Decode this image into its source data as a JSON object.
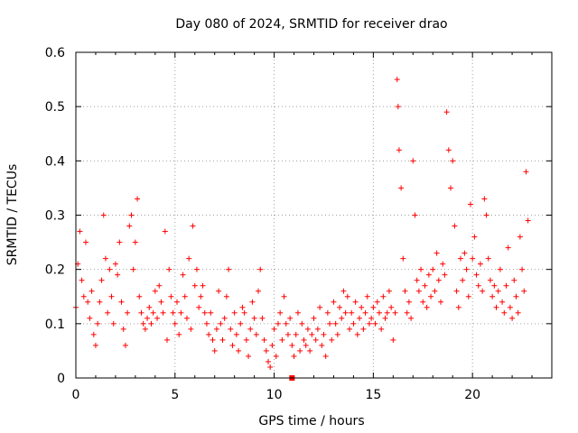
{
  "chart_data": {
    "type": "scatter",
    "title": "Day 080 of 2024, SRMTID for receiver drao",
    "xlabel": "GPS time / hours",
    "ylabel": "SRMTID / TECUs",
    "xlim": [
      0,
      24
    ],
    "ylim": [
      0,
      0.6
    ],
    "xticks": [
      0,
      5,
      10,
      15,
      20
    ],
    "yticks": [
      0,
      0.1,
      0.2,
      0.3,
      0.4,
      0.5,
      0.6
    ],
    "ytick_labels": [
      "0",
      "0.1",
      "0.2",
      "0.3",
      "0.4",
      "0.5",
      "0.6"
    ],
    "grid": true,
    "marker": "+",
    "color": "#ff0000",
    "marker_hours": 10.9,
    "series": [
      {
        "name": "SRMTID",
        "points": [
          [
            0.0,
            0.13
          ],
          [
            0.1,
            0.21
          ],
          [
            0.2,
            0.27
          ],
          [
            0.3,
            0.18
          ],
          [
            0.4,
            0.15
          ],
          [
            0.5,
            0.25
          ],
          [
            0.6,
            0.14
          ],
          [
            0.7,
            0.11
          ],
          [
            0.8,
            0.16
          ],
          [
            0.9,
            0.08
          ],
          [
            1.0,
            0.06
          ],
          [
            1.1,
            0.1
          ],
          [
            1.2,
            0.14
          ],
          [
            1.3,
            0.18
          ],
          [
            1.4,
            0.3
          ],
          [
            1.5,
            0.22
          ],
          [
            1.6,
            0.12
          ],
          [
            1.7,
            0.2
          ],
          [
            1.8,
            0.15
          ],
          [
            1.9,
            0.1
          ],
          [
            2.0,
            0.21
          ],
          [
            2.1,
            0.19
          ],
          [
            2.2,
            0.25
          ],
          [
            2.3,
            0.14
          ],
          [
            2.4,
            0.09
          ],
          [
            2.5,
            0.06
          ],
          [
            2.6,
            0.12
          ],
          [
            2.7,
            0.28
          ],
          [
            2.8,
            0.3
          ],
          [
            2.9,
            0.2
          ],
          [
            3.0,
            0.25
          ],
          [
            3.1,
            0.33
          ],
          [
            3.2,
            0.15
          ],
          [
            3.3,
            0.12
          ],
          [
            3.4,
            0.1
          ],
          [
            3.5,
            0.09
          ],
          [
            3.6,
            0.11
          ],
          [
            3.7,
            0.13
          ],
          [
            3.8,
            0.1
          ],
          [
            3.9,
            0.12
          ],
          [
            4.0,
            0.16
          ],
          [
            4.1,
            0.11
          ],
          [
            4.2,
            0.17
          ],
          [
            4.3,
            0.14
          ],
          [
            4.4,
            0.12
          ],
          [
            4.5,
            0.27
          ],
          [
            4.6,
            0.07
          ],
          [
            4.7,
            0.2
          ],
          [
            4.8,
            0.15
          ],
          [
            4.9,
            0.12
          ],
          [
            5.0,
            0.1
          ],
          [
            5.1,
            0.14
          ],
          [
            5.2,
            0.08
          ],
          [
            5.3,
            0.12
          ],
          [
            5.4,
            0.19
          ],
          [
            5.5,
            0.15
          ],
          [
            5.6,
            0.11
          ],
          [
            5.7,
            0.22
          ],
          [
            5.8,
            0.09
          ],
          [
            5.9,
            0.28
          ],
          [
            6.0,
            0.17
          ],
          [
            6.1,
            0.2
          ],
          [
            6.2,
            0.13
          ],
          [
            6.3,
            0.15
          ],
          [
            6.4,
            0.17
          ],
          [
            6.5,
            0.12
          ],
          [
            6.6,
            0.1
          ],
          [
            6.7,
            0.08
          ],
          [
            6.8,
            0.12
          ],
          [
            6.9,
            0.07
          ],
          [
            7.0,
            0.05
          ],
          [
            7.1,
            0.09
          ],
          [
            7.2,
            0.16
          ],
          [
            7.3,
            0.1
          ],
          [
            7.4,
            0.07
          ],
          [
            7.5,
            0.11
          ],
          [
            7.6,
            0.15
          ],
          [
            7.7,
            0.2
          ],
          [
            7.8,
            0.09
          ],
          [
            7.9,
            0.06
          ],
          [
            8.0,
            0.12
          ],
          [
            8.1,
            0.08
          ],
          [
            8.2,
            0.05
          ],
          [
            8.3,
            0.1
          ],
          [
            8.4,
            0.13
          ],
          [
            8.5,
            0.12
          ],
          [
            8.6,
            0.07
          ],
          [
            8.7,
            0.04
          ],
          [
            8.8,
            0.09
          ],
          [
            8.9,
            0.14
          ],
          [
            9.0,
            0.11
          ],
          [
            9.1,
            0.08
          ],
          [
            9.2,
            0.16
          ],
          [
            9.3,
            0.2
          ],
          [
            9.4,
            0.11
          ],
          [
            9.5,
            0.07
          ],
          [
            9.6,
            0.05
          ],
          [
            9.7,
            0.03
          ],
          [
            9.8,
            0.02
          ],
          [
            9.9,
            0.06
          ],
          [
            10.0,
            0.09
          ],
          [
            10.1,
            0.04
          ],
          [
            10.2,
            0.1
          ],
          [
            10.3,
            0.12
          ],
          [
            10.4,
            0.07
          ],
          [
            10.5,
            0.15
          ],
          [
            10.6,
            0.1
          ],
          [
            10.7,
            0.08
          ],
          [
            10.8,
            0.11
          ],
          [
            10.9,
            0.06
          ],
          [
            11.0,
            0.04
          ],
          [
            11.1,
            0.08
          ],
          [
            11.2,
            0.12
          ],
          [
            11.3,
            0.05
          ],
          [
            11.4,
            0.1
          ],
          [
            11.5,
            0.07
          ],
          [
            11.6,
            0.06
          ],
          [
            11.7,
            0.09
          ],
          [
            11.8,
            0.05
          ],
          [
            11.9,
            0.08
          ],
          [
            12.0,
            0.11
          ],
          [
            12.1,
            0.07
          ],
          [
            12.2,
            0.09
          ],
          [
            12.3,
            0.13
          ],
          [
            12.4,
            0.06
          ],
          [
            12.5,
            0.08
          ],
          [
            12.6,
            0.04
          ],
          [
            12.7,
            0.12
          ],
          [
            12.8,
            0.1
          ],
          [
            12.9,
            0.07
          ],
          [
            13.0,
            0.14
          ],
          [
            13.1,
            0.1
          ],
          [
            13.2,
            0.08
          ],
          [
            13.3,
            0.13
          ],
          [
            13.4,
            0.11
          ],
          [
            13.5,
            0.16
          ],
          [
            13.6,
            0.12
          ],
          [
            13.7,
            0.15
          ],
          [
            13.8,
            0.09
          ],
          [
            13.9,
            0.12
          ],
          [
            14.0,
            0.1
          ],
          [
            14.1,
            0.14
          ],
          [
            14.2,
            0.08
          ],
          [
            14.3,
            0.11
          ],
          [
            14.4,
            0.13
          ],
          [
            14.5,
            0.09
          ],
          [
            14.6,
            0.12
          ],
          [
            14.7,
            0.15
          ],
          [
            14.8,
            0.1
          ],
          [
            14.9,
            0.11
          ],
          [
            15.0,
            0.13
          ],
          [
            15.1,
            0.1
          ],
          [
            15.2,
            0.14
          ],
          [
            15.3,
            0.12
          ],
          [
            15.4,
            0.09
          ],
          [
            15.5,
            0.15
          ],
          [
            15.6,
            0.11
          ],
          [
            15.7,
            0.12
          ],
          [
            15.8,
            0.16
          ],
          [
            15.9,
            0.13
          ],
          [
            16.0,
            0.07
          ],
          [
            16.1,
            0.12
          ],
          [
            16.2,
            0.55
          ],
          [
            16.25,
            0.5
          ],
          [
            16.3,
            0.42
          ],
          [
            16.4,
            0.35
          ],
          [
            16.5,
            0.22
          ],
          [
            16.6,
            0.16
          ],
          [
            16.7,
            0.12
          ],
          [
            16.8,
            0.14
          ],
          [
            16.9,
            0.11
          ],
          [
            17.0,
            0.4
          ],
          [
            17.1,
            0.3
          ],
          [
            17.2,
            0.18
          ],
          [
            17.3,
            0.16
          ],
          [
            17.4,
            0.2
          ],
          [
            17.5,
            0.14
          ],
          [
            17.6,
            0.17
          ],
          [
            17.7,
            0.13
          ],
          [
            17.8,
            0.19
          ],
          [
            17.9,
            0.15
          ],
          [
            18.0,
            0.2
          ],
          [
            18.1,
            0.16
          ],
          [
            18.2,
            0.23
          ],
          [
            18.3,
            0.18
          ],
          [
            18.4,
            0.14
          ],
          [
            18.5,
            0.21
          ],
          [
            18.6,
            0.19
          ],
          [
            18.7,
            0.49
          ],
          [
            18.8,
            0.42
          ],
          [
            18.9,
            0.35
          ],
          [
            19.0,
            0.4
          ],
          [
            19.1,
            0.28
          ],
          [
            19.2,
            0.16
          ],
          [
            19.3,
            0.13
          ],
          [
            19.4,
            0.22
          ],
          [
            19.5,
            0.18
          ],
          [
            19.6,
            0.23
          ],
          [
            19.7,
            0.2
          ],
          [
            19.8,
            0.15
          ],
          [
            19.9,
            0.32
          ],
          [
            20.0,
            0.22
          ],
          [
            20.1,
            0.26
          ],
          [
            20.2,
            0.19
          ],
          [
            20.3,
            0.17
          ],
          [
            20.4,
            0.21
          ],
          [
            20.5,
            0.16
          ],
          [
            20.6,
            0.33
          ],
          [
            20.7,
            0.3
          ],
          [
            20.8,
            0.22
          ],
          [
            20.9,
            0.18
          ],
          [
            21.0,
            0.15
          ],
          [
            21.1,
            0.17
          ],
          [
            21.2,
            0.13
          ],
          [
            21.3,
            0.16
          ],
          [
            21.4,
            0.2
          ],
          [
            21.5,
            0.14
          ],
          [
            21.6,
            0.12
          ],
          [
            21.7,
            0.17
          ],
          [
            21.8,
            0.24
          ],
          [
            21.9,
            0.13
          ],
          [
            22.0,
            0.11
          ],
          [
            22.1,
            0.18
          ],
          [
            22.2,
            0.15
          ],
          [
            22.3,
            0.12
          ],
          [
            22.4,
            0.26
          ],
          [
            22.5,
            0.2
          ],
          [
            22.6,
            0.16
          ],
          [
            22.7,
            0.38
          ],
          [
            22.8,
            0.29
          ]
        ]
      }
    ]
  }
}
